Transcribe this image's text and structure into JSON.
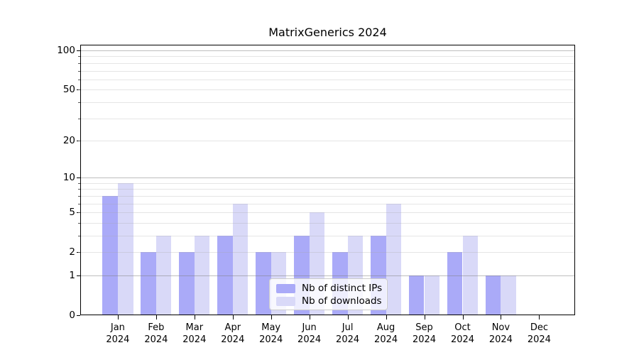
{
  "title": "MatrixGenerics 2024",
  "colors": {
    "distinct_ips_bar": "#aaaaf8",
    "downloads_bar": "#d9d9f8",
    "grid_major": "rgba(125,125,125,0.50)",
    "grid_minor": "rgba(168,168,168,0.30)",
    "axis": "#000000",
    "legend_border": "#cccccc",
    "legend_background": "rgba(255,255,255,0.8)"
  },
  "chart_data": {
    "type": "bar",
    "title": "MatrixGenerics 2024",
    "categories": [
      "Jan 2024",
      "Feb 2024",
      "Mar 2024",
      "Apr 2024",
      "May 2024",
      "Jun 2024",
      "Jul 2024",
      "Aug 2024",
      "Sep 2024",
      "Oct 2024",
      "Nov 2024",
      "Dec 2024"
    ],
    "series": [
      {
        "name": "Nb of distinct IPs",
        "color_key": "distinct_ips_bar",
        "values": [
          7,
          2,
          2,
          3,
          2,
          3,
          2,
          3,
          1,
          2,
          1,
          0
        ]
      },
      {
        "name": "Nb of downloads",
        "color_key": "downloads_bar",
        "values": [
          9,
          3,
          3,
          6,
          2,
          5,
          3,
          6,
          1,
          3,
          1,
          0
        ]
      }
    ],
    "xlabel": "",
    "ylabel": "",
    "y_scale": "log10(1+x)",
    "y_tick_labels": [
      100,
      50,
      20,
      10,
      5,
      2,
      1,
      0
    ],
    "y_major_gridlines": [
      1,
      10,
      100
    ],
    "y_minor_gridlines": [
      2,
      3,
      4,
      5,
      6,
      7,
      8,
      9,
      20,
      30,
      40,
      50,
      60,
      70,
      80,
      90
    ],
    "ylim": [
      0,
      110.5
    ],
    "grid": true,
    "grid_above_bars": true,
    "legend_position": "lower center"
  }
}
